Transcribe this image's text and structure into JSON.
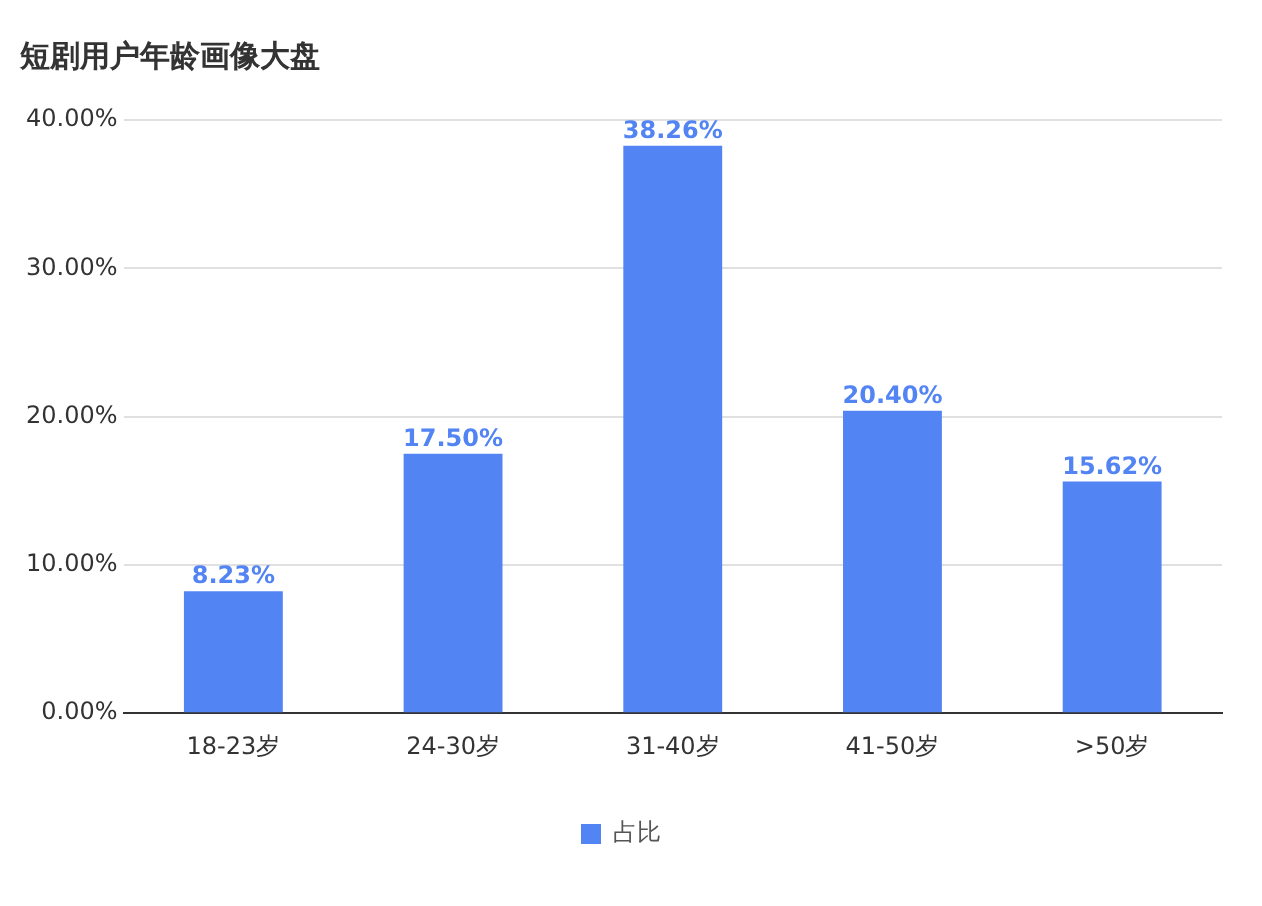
{
  "chart_data": {
    "type": "bar",
    "title": "短剧用户年龄画像大盘",
    "categories": [
      "18-23岁",
      "24-30岁",
      "31-40岁",
      "41-50岁",
      ">50岁"
    ],
    "series": [
      {
        "name": "占比",
        "color": "#5384f4",
        "values": [
          8.23,
          17.5,
          38.26,
          20.4,
          15.62
        ],
        "value_labels": [
          "8.23%",
          "17.50%",
          "38.26%",
          "20.40%",
          "15.62%"
        ]
      }
    ],
    "ylim": [
      0,
      40
    ],
    "yticks": [
      {
        "value": 0,
        "label": "0.00%"
      },
      {
        "value": 10,
        "label": "10.00%"
      },
      {
        "value": 20,
        "label": "20.00%"
      },
      {
        "value": 30,
        "label": "30.00%"
      },
      {
        "value": 40,
        "label": "40.00%"
      }
    ],
    "grid": "y",
    "legend": "bottom"
  }
}
